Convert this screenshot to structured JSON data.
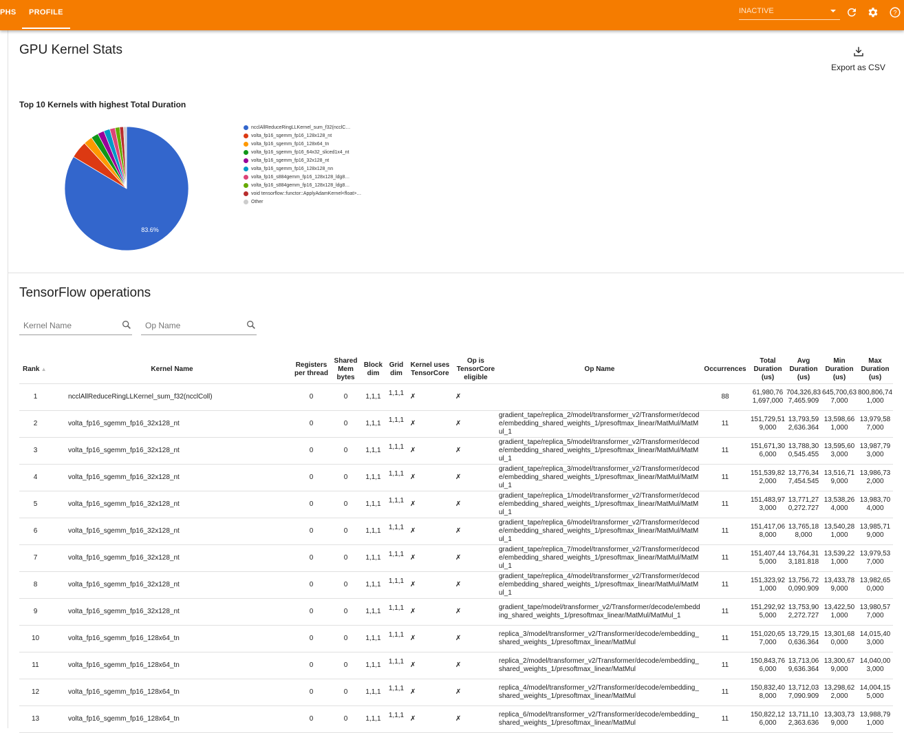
{
  "topbar": {
    "tabs": [
      "PHS",
      "PROFILE"
    ],
    "run_select": "INACTIVE",
    "icons": [
      "refresh-icon",
      "settings-icon",
      "help-icon"
    ]
  },
  "kernel_stats": {
    "title": "GPU Kernel Stats",
    "export_label": "Export as CSV",
    "chart_title": "Top 10 Kernels with highest Total Duration"
  },
  "chart_data": {
    "type": "pie",
    "title": "Top 10 Kernels with highest Total Duration",
    "legend_position": "right",
    "categories": [
      "ncclAllReduceRingLLKernel_sum_f32(ncclC…",
      "volta_fp16_sgemm_fp16_128x128_nt",
      "volta_fp16_sgemm_fp16_128x64_tn",
      "volta_fp16_sgemm_fp16_64x32_sliced1x4_nt",
      "volta_fp16_sgemm_fp16_32x128_nt",
      "volta_fp16_sgemm_fp16_128x128_nn",
      "volta_fp16_s884gemm_fp16_128x128_ldg8…",
      "volta_fp16_s884gemm_fp16_128x128_ldg8…",
      "void tensorflow::functor::ApplyAdamKernel<float>…",
      "Other"
    ],
    "values": [
      83.6,
      4.5,
      2.3,
      1.9,
      1.7,
      1.6,
      1.4,
      1.2,
      1.0,
      0.8
    ],
    "colors": [
      "#3366cc",
      "#dc3912",
      "#ff9900",
      "#109618",
      "#990099",
      "#0099c6",
      "#dd4477",
      "#66aa00",
      "#b82e2e",
      "#cccccc"
    ],
    "data_labels": [
      "83.6%"
    ]
  },
  "ops": {
    "title": "TensorFlow operations",
    "kernel_search_placeholder": "Kernel Name",
    "op_search_placeholder": "Op Name",
    "columns": [
      "Rank",
      "Kernel Name",
      "Registers per thread",
      "Shared Mem bytes",
      "Block dim",
      "Grid dim",
      "Kernel uses TensorCore",
      "Op is TensorCore eligible",
      "Op Name",
      "Occurrences",
      "Total Duration (us)",
      "Avg Duration (us)",
      "Min Duration (us)",
      "Max Duration (us)"
    ],
    "sort": "Rank ascending",
    "rows": [
      [
        "1",
        "ncclAllReduceRingLLKernel_sum_f32(ncclColl)",
        "0",
        "0",
        "1,1,1",
        "1,1,1",
        "✗",
        "✗",
        "",
        "88",
        "61,980,761,697,000",
        "704,326,837,465.909",
        "645,700,637,000",
        "800,806,741,000"
      ],
      [
        "2",
        "volta_fp16_sgemm_fp16_32x128_nt",
        "0",
        "0",
        "1,1,1",
        "1,1,1",
        "✗",
        "✗",
        "gradient_tape/replica_2/model/transformer_v2/Transformer/decode/embedding_shared_weights_1/presoftmax_linear/MatMul/MatMul_1",
        "11",
        "151,729,519,000",
        "13,793,592,636.364",
        "13,598,661,000",
        "13,979,587,000"
      ],
      [
        "3",
        "volta_fp16_sgemm_fp16_32x128_nt",
        "0",
        "0",
        "1,1,1",
        "1,1,1",
        "✗",
        "✗",
        "gradient_tape/replica_5/model/transformer_v2/Transformer/decode/embedding_shared_weights_1/presoftmax_linear/MatMul/MatMul_1",
        "11",
        "151,671,306,000",
        "13,788,300,545.455",
        "13,595,603,000",
        "13,987,793,000"
      ],
      [
        "4",
        "volta_fp16_sgemm_fp16_32x128_nt",
        "0",
        "0",
        "1,1,1",
        "1,1,1",
        "✗",
        "✗",
        "gradient_tape/replica_3/model/transformer_v2/Transformer/decode/embedding_shared_weights_1/presoftmax_linear/MatMul/MatMul_1",
        "11",
        "151,539,822,000",
        "13,776,347,454.545",
        "13,516,719,000",
        "13,986,732,000"
      ],
      [
        "5",
        "volta_fp16_sgemm_fp16_32x128_nt",
        "0",
        "0",
        "1,1,1",
        "1,1,1",
        "✗",
        "✗",
        "gradient_tape/replica_1/model/transformer_v2/Transformer/decode/embedding_shared_weights_1/presoftmax_linear/MatMul/MatMul_1",
        "11",
        "151,483,973,000",
        "13,771,270,272.727",
        "13,538,264,000",
        "13,983,704,000"
      ],
      [
        "6",
        "volta_fp16_sgemm_fp16_32x128_nt",
        "0",
        "0",
        "1,1,1",
        "1,1,1",
        "✗",
        "✗",
        "gradient_tape/replica_6/model/transformer_v2/Transformer/decode/embedding_shared_weights_1/presoftmax_linear/MatMul/MatMul_1",
        "11",
        "151,417,068,000",
        "13,765,188,000",
        "13,540,281,000",
        "13,985,719,000"
      ],
      [
        "7",
        "volta_fp16_sgemm_fp16_32x128_nt",
        "0",
        "0",
        "1,1,1",
        "1,1,1",
        "✗",
        "✗",
        "gradient_tape/replica_7/model/transformer_v2/Transformer/decode/embedding_shared_weights_1/presoftmax_linear/MatMul/MatMul_1",
        "11",
        "151,407,445,000",
        "13,764,313,181.818",
        "13,539,221,000",
        "13,979,537,000"
      ],
      [
        "8",
        "volta_fp16_sgemm_fp16_32x128_nt",
        "0",
        "0",
        "1,1,1",
        "1,1,1",
        "✗",
        "✗",
        "gradient_tape/replica_4/model/transformer_v2/Transformer/decode/embedding_shared_weights_1/presoftmax_linear/MatMul/MatMul_1",
        "11",
        "151,323,921,000",
        "13,756,720,090.909",
        "13,433,789,000",
        "13,982,650,000"
      ],
      [
        "9",
        "volta_fp16_sgemm_fp16_32x128_nt",
        "0",
        "0",
        "1,1,1",
        "1,1,1",
        "✗",
        "✗",
        "gradient_tape/model/transformer_v2/Transformer/decode/embedding_shared_weights_1/presoftmax_linear/MatMul/MatMul_1",
        "11",
        "151,292,925,000",
        "13,753,902,272.727",
        "13,422,501,000",
        "13,980,577,000"
      ],
      [
        "10",
        "volta_fp16_sgemm_fp16_128x64_tn",
        "0",
        "0",
        "1,1,1",
        "1,1,1",
        "✗",
        "✗",
        "replica_3/model/transformer_v2/Transformer/decode/embedding_shared_weights_1/presoftmax_linear/MatMul",
        "11",
        "151,020,657,000",
        "13,729,150,636.364",
        "13,301,680,000",
        "14,015,403,000"
      ],
      [
        "11",
        "volta_fp16_sgemm_fp16_128x64_tn",
        "0",
        "0",
        "1,1,1",
        "1,1,1",
        "✗",
        "✗",
        "replica_2/model/transformer_v2/Transformer/decode/embedding_shared_weights_1/presoftmax_linear/MatMul",
        "11",
        "150,843,766,000",
        "13,713,069,636.364",
        "13,300,679,000",
        "14,040,003,000"
      ],
      [
        "12",
        "volta_fp16_sgemm_fp16_128x64_tn",
        "0",
        "0",
        "1,1,1",
        "1,1,1",
        "✗",
        "✗",
        "replica_4/model/transformer_v2/Transformer/decode/embedding_shared_weights_1/presoftmax_linear/MatMul",
        "11",
        "150,832,408,000",
        "13,712,037,090.909",
        "13,298,622,000",
        "14,004,155,000"
      ],
      [
        "13",
        "volta_fp16_sgemm_fp16_128x64_tn",
        "0",
        "0",
        "1,1,1",
        "1,1,1",
        "✗",
        "✗",
        "replica_6/model/transformer_v2/Transformer/decode/embedding_shared_weights_1/presoftmax_linear/MatMul",
        "11",
        "150,822,126,000",
        "13,711,102,363.636",
        "13,303,739,000",
        "13,988,791,000"
      ]
    ]
  }
}
